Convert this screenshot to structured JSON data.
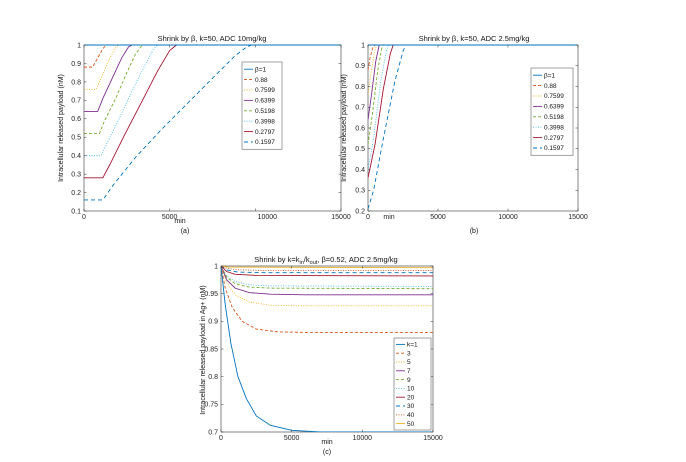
{
  "chart_data": [
    {
      "id": "a",
      "type": "line",
      "title": "Shrink by β, k=50, ADC 10mg/kg",
      "xlabel": "min",
      "ylabel": "Intracellular released payload (nM)",
      "caption": "(a)",
      "xlim": [
        0,
        15000
      ],
      "ylim": [
        0.1,
        1
      ],
      "xticks": [
        0,
        5000,
        10000,
        15000
      ],
      "xtick_labels": [
        "0",
        "5000",
        "",
        "15000"
      ],
      "yticks": [
        0.1,
        0.2,
        0.3,
        0.4,
        0.5,
        0.6,
        0.7,
        0.8,
        0.9,
        1
      ],
      "ytick_labels": [
        "0.1",
        "0.2",
        "0.3",
        "0.4",
        "0.5",
        "0.6",
        "0.7",
        "0.8",
        "0.9",
        "1"
      ],
      "extra_labels": [
        {
          "text": "10000",
          "x": 10700
        }
      ],
      "legend_position": "right",
      "series": [
        {
          "name": "β=1",
          "color": "#0072bd",
          "dash": "",
          "points": [
            [
              0,
              1
            ],
            [
              15000,
              1
            ]
          ]
        },
        {
          "name": "0.88",
          "color": "#d95319",
          "dash": "3,2",
          "points": [
            [
              0,
              0.88
            ],
            [
              500,
              0.88
            ],
            [
              800,
              0.93
            ],
            [
              1100,
              0.98
            ],
            [
              1300,
              1
            ],
            [
              15000,
              1
            ]
          ]
        },
        {
          "name": "0.7599",
          "color": "#edb120",
          "dash": "1,1.5",
          "points": [
            [
              0,
              0.76
            ],
            [
              700,
              0.76
            ],
            [
              1000,
              0.82
            ],
            [
              1400,
              0.91
            ],
            [
              1800,
              0.98
            ],
            [
              2000,
              1
            ],
            [
              15000,
              1
            ]
          ]
        },
        {
          "name": "0.6399",
          "color": "#7e2f8e",
          "dash": "",
          "points": [
            [
              0,
              0.64
            ],
            [
              800,
              0.64
            ],
            [
              1100,
              0.71
            ],
            [
              1600,
              0.81
            ],
            [
              2200,
              0.93
            ],
            [
              2600,
              0.99
            ],
            [
              2800,
              1
            ],
            [
              15000,
              1
            ]
          ]
        },
        {
          "name": "0.5198",
          "color": "#77ac30",
          "dash": "3,2",
          "points": [
            [
              0,
              0.52
            ],
            [
              900,
              0.52
            ],
            [
              1200,
              0.59
            ],
            [
              1800,
              0.7
            ],
            [
              2500,
              0.85
            ],
            [
              3000,
              0.95
            ],
            [
              3400,
              1
            ],
            [
              15000,
              1
            ]
          ]
        },
        {
          "name": "0.3998",
          "color": "#4dbeee",
          "dash": "1,1.5",
          "points": [
            [
              0,
              0.4
            ],
            [
              1000,
              0.4
            ],
            [
              1300,
              0.46
            ],
            [
              2000,
              0.59
            ],
            [
              2800,
              0.75
            ],
            [
              3500,
              0.88
            ],
            [
              4000,
              0.97
            ],
            [
              4300,
              1
            ],
            [
              15000,
              1
            ]
          ]
        },
        {
          "name": "0.2797",
          "color": "#a2142f",
          "dash": "",
          "points": [
            [
              0,
              0.28
            ],
            [
              1100,
              0.28
            ],
            [
              1500,
              0.35
            ],
            [
              2300,
              0.5
            ],
            [
              3300,
              0.68
            ],
            [
              4300,
              0.86
            ],
            [
              5000,
              0.97
            ],
            [
              5400,
              1
            ],
            [
              15000,
              1
            ]
          ]
        },
        {
          "name": "0.1597",
          "color": "#0072bd",
          "dash": "4,3",
          "points": [
            [
              0,
              0.16
            ],
            [
              1100,
              0.16
            ],
            [
              1700,
              0.24
            ],
            [
              3000,
              0.39
            ],
            [
              4500,
              0.54
            ],
            [
              6000,
              0.68
            ],
            [
              7500,
              0.82
            ],
            [
              8800,
              0.94
            ],
            [
              9500,
              0.99
            ],
            [
              9800,
              1
            ],
            [
              15000,
              1
            ]
          ]
        }
      ]
    },
    {
      "id": "b",
      "type": "line",
      "title": "Shrink by β, k=50, ADC 2.5mg/kg",
      "xlabel": "min",
      "ylabel": "Intracellular released payload (nM)",
      "caption": "(b)",
      "xlim": [
        0,
        15000
      ],
      "ylim": [
        0.2,
        1
      ],
      "xticks": [
        0,
        5000,
        10000,
        15000
      ],
      "xtick_labels": [
        "0",
        "5000",
        "10000",
        "15000"
      ],
      "yticks": [
        0.2,
        0.3,
        0.4,
        0.5,
        0.6,
        0.7,
        0.8,
        0.9,
        1
      ],
      "ytick_labels": [
        "0.2",
        "0.3",
        "0.4",
        "0.5",
        "0.6",
        "0.7",
        "0.8",
        "0.9",
        "1"
      ],
      "extra_labels": [
        {
          "text": "min",
          "x": 1500
        }
      ],
      "legend_position": "right",
      "series": [
        {
          "name": "β=1",
          "color": "#0072bd",
          "dash": "",
          "points": [
            [
              0,
              1
            ],
            [
              15000,
              1
            ]
          ]
        },
        {
          "name": "0.88",
          "color": "#d95319",
          "dash": "3,2",
          "points": [
            [
              0,
              0.88
            ],
            [
              150,
              0.94
            ],
            [
              350,
              0.99
            ],
            [
              500,
              1
            ],
            [
              15000,
              1
            ]
          ]
        },
        {
          "name": "0.7599",
          "color": "#edb120",
          "dash": "1,1.5",
          "points": [
            [
              0,
              0.76
            ],
            [
              200,
              0.86
            ],
            [
              450,
              0.96
            ],
            [
              600,
              1
            ],
            [
              15000,
              1
            ]
          ]
        },
        {
          "name": "0.6399",
          "color": "#7e2f8e",
          "dash": "",
          "points": [
            [
              0,
              0.64
            ],
            [
              250,
              0.76
            ],
            [
              550,
              0.92
            ],
            [
              800,
              1
            ],
            [
              15000,
              1
            ]
          ]
        },
        {
          "name": "0.5198",
          "color": "#77ac30",
          "dash": "3,2",
          "points": [
            [
              0,
              0.52
            ],
            [
              300,
              0.66
            ],
            [
              700,
              0.88
            ],
            [
              1000,
              0.99
            ],
            [
              1100,
              1
            ],
            [
              15000,
              1
            ]
          ]
        },
        {
          "name": "0.3998",
          "color": "#4dbeee",
          "dash": "1,1.5",
          "points": [
            [
              0,
              0.4
            ],
            [
              400,
              0.55
            ],
            [
              900,
              0.82
            ],
            [
              1300,
              0.97
            ],
            [
              1450,
              1
            ],
            [
              15000,
              1
            ]
          ]
        },
        {
          "name": "0.2797",
          "color": "#a2142f",
          "dash": "",
          "points": [
            [
              0,
              0.36
            ],
            [
              500,
              0.52
            ],
            [
              1100,
              0.79
            ],
            [
              1600,
              0.96
            ],
            [
              1800,
              1
            ],
            [
              15000,
              1
            ]
          ]
        },
        {
          "name": "0.1597",
          "color": "#0072bd",
          "dash": "4,3",
          "points": [
            [
              0,
              0.21
            ],
            [
              400,
              0.3
            ],
            [
              1100,
              0.55
            ],
            [
              1900,
              0.82
            ],
            [
              2500,
              0.97
            ],
            [
              2700,
              1
            ],
            [
              15000,
              1
            ]
          ]
        }
      ]
    },
    {
      "id": "c",
      "type": "line",
      "title": "Shrink by k=kin/kout, β=0.52, ADC 2.5mg/kg",
      "title_parts": {
        "prefix": "Shrink by k=k",
        "sub1": "in",
        "mid": "/k",
        "sub2": "out",
        "suffix": ", β=0.52, ADC 2.5mg/kg"
      },
      "xlabel": "min",
      "ylabel": "Intracellular released payload in Ag+ (nM)",
      "caption": "(c)",
      "xlim": [
        0,
        15000
      ],
      "ylim": [
        0.7,
        1
      ],
      "xticks": [
        0,
        5000,
        10000,
        15000
      ],
      "xtick_labels": [
        "0",
        "5000",
        "10000",
        "15000"
      ],
      "yticks": [
        0.7,
        0.75,
        0.8,
        0.85,
        0.9,
        0.95,
        1
      ],
      "ytick_labels": [
        "0.7",
        "0.75",
        "0.8",
        "0.85",
        "0.9",
        "0.95",
        "1"
      ],
      "extra_labels": [],
      "legend_position": "lower-right",
      "series": [
        {
          "name": "k=1",
          "color": "#0072bd",
          "dash": "",
          "points": [
            [
              0,
              1
            ],
            [
              300,
              0.93
            ],
            [
              700,
              0.86
            ],
            [
              1200,
              0.8
            ],
            [
              1800,
              0.76
            ],
            [
              2500,
              0.729
            ],
            [
              3500,
              0.712
            ],
            [
              5000,
              0.703
            ],
            [
              7000,
              0.7
            ],
            [
              15000,
              0.7
            ]
          ]
        },
        {
          "name": "3",
          "color": "#d95319",
          "dash": "3,2",
          "points": [
            [
              0,
              1
            ],
            [
              300,
              0.96
            ],
            [
              800,
              0.925
            ],
            [
              1500,
              0.9
            ],
            [
              2500,
              0.886
            ],
            [
              4000,
              0.881
            ],
            [
              6000,
              0.88
            ],
            [
              15000,
              0.88
            ]
          ]
        },
        {
          "name": "5",
          "color": "#edb120",
          "dash": "1,1.5",
          "points": [
            [
              0,
              1
            ],
            [
              400,
              0.97
            ],
            [
              1000,
              0.948
            ],
            [
              2000,
              0.935
            ],
            [
              3500,
              0.929
            ],
            [
              6000,
              0.928
            ],
            [
              15000,
              0.928
            ]
          ]
        },
        {
          "name": "7",
          "color": "#7e2f8e",
          "dash": "",
          "points": [
            [
              0,
              1
            ],
            [
              400,
              0.975
            ],
            [
              1000,
              0.96
            ],
            [
              2000,
              0.952
            ],
            [
              3500,
              0.949
            ],
            [
              6000,
              0.948
            ],
            [
              15000,
              0.948
            ]
          ]
        },
        {
          "name": "9",
          "color": "#77ac30",
          "dash": "3,2",
          "points": [
            [
              0,
              1
            ],
            [
              400,
              0.98
            ],
            [
              1000,
              0.968
            ],
            [
              2000,
              0.962
            ],
            [
              3500,
              0.96
            ],
            [
              15000,
              0.959
            ]
          ]
        },
        {
          "name": "10",
          "color": "#4dbeee",
          "dash": "1,1.5",
          "points": [
            [
              0,
              1
            ],
            [
              400,
              0.982
            ],
            [
              1000,
              0.972
            ],
            [
              2000,
              0.966
            ],
            [
              3500,
              0.964
            ],
            [
              15000,
              0.963
            ]
          ]
        },
        {
          "name": "20",
          "color": "#a2142f",
          "dash": "",
          "points": [
            [
              0,
              1
            ],
            [
              400,
              0.99
            ],
            [
              1000,
              0.985
            ],
            [
              2500,
              0.983
            ],
            [
              15000,
              0.982
            ]
          ]
        },
        {
          "name": "30",
          "color": "#0072bd",
          "dash": "4,3",
          "points": [
            [
              0,
              1
            ],
            [
              400,
              0.993
            ],
            [
              1200,
              0.989
            ],
            [
              3000,
              0.988
            ],
            [
              15000,
              0.988
            ]
          ]
        },
        {
          "name": "40",
          "color": "#d95319",
          "dash": "1,1.5",
          "points": [
            [
              0,
              1
            ],
            [
              400,
              0.996
            ],
            [
              1200,
              0.993
            ],
            [
              3000,
              0.992
            ],
            [
              15000,
              0.992
            ]
          ]
        },
        {
          "name": "50",
          "color": "#edb120",
          "dash": "",
          "points": [
            [
              0,
              1
            ],
            [
              500,
              0.998
            ],
            [
              15000,
              0.997
            ]
          ]
        }
      ]
    }
  ]
}
